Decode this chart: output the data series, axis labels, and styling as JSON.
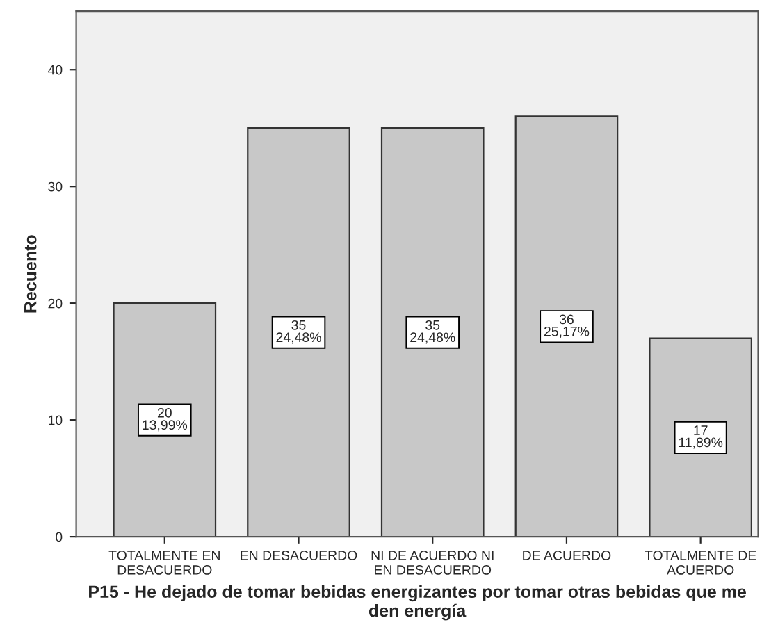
{
  "chart_data": {
    "type": "bar",
    "xlabel": "P15 - He dejado de tomar bebidas energizantes por tomar otras bebidas que me den energía",
    "ylabel": "Recuento",
    "categories": [
      "TOTALMENTE EN DESACUERDO",
      "EN DESACUERDO",
      "NI DE ACUERDO NI EN DESACUERDO",
      "DE ACUERDO",
      "TOTALMENTE DE ACUERDO"
    ],
    "values": [
      20,
      35,
      35,
      36,
      17
    ],
    "value_labels": [
      "20\n13,99%",
      "35\n24,48%",
      "35\n24,48%",
      "36\n25,17%",
      "17\n11,89%"
    ],
    "color": "#c8c8c8",
    "ylim": [
      0,
      45
    ],
    "yticks": [
      0,
      10,
      20,
      30,
      40
    ],
    "grid": false
  }
}
